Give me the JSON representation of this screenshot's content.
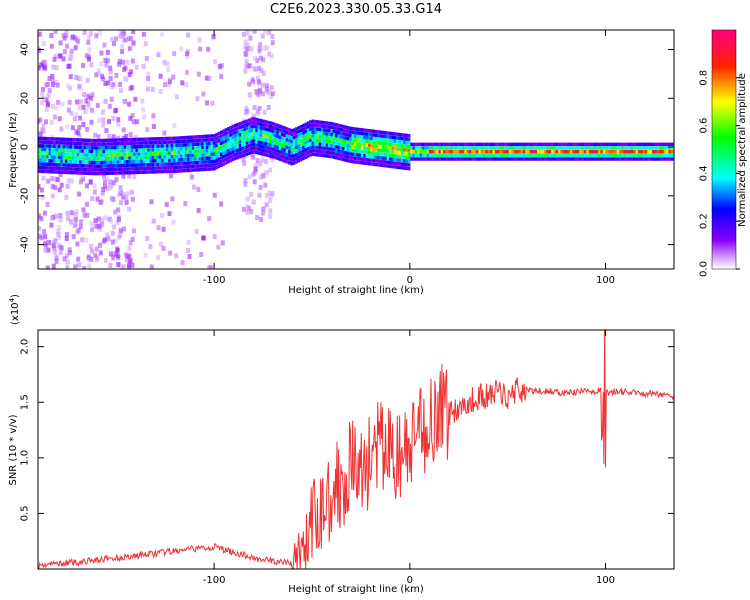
{
  "title": "C2E6.2023.330.05.33.G14",
  "chart_data": [
    {
      "type": "heatmap",
      "xlabel": "Height of straight line (km)",
      "ylabel": "Frequency (Hz)",
      "xlim": [
        -190,
        135
      ],
      "ylim": [
        -50,
        48
      ],
      "xticks": [
        -100,
        0,
        100
      ],
      "yticks": [
        -40,
        -20,
        0,
        20,
        40
      ],
      "colorbar": {
        "label": "Normalized spectral amplitude",
        "range": [
          0,
          1
        ],
        "ticks": [
          0.0,
          0.2,
          0.4,
          0.6,
          0.8
        ]
      },
      "ridge": {
        "description_points_x": [
          -190,
          -160,
          -120,
          -100,
          -90,
          -80,
          -70,
          -60,
          -50,
          -40,
          -30,
          -20,
          -10,
          0,
          20,
          60,
          100,
          135
        ],
        "description_points_y": [
          -3,
          -4,
          -3,
          -2,
          2,
          5,
          3,
          0,
          4,
          3,
          1,
          0,
          -1,
          -2,
          -2,
          -2,
          -2,
          -2
        ]
      }
    },
    {
      "type": "line",
      "xlabel": "Height of straight line (km)",
      "ylabel": "SNR (10 * v/v)",
      "y_multiplier": "(x10",
      "y_multiplier_exp": "4",
      "y_multiplier_close": ")",
      "xlim": [
        -190,
        135
      ],
      "ylim": [
        0,
        2.15
      ],
      "xticks": [
        -100,
        0,
        100
      ],
      "yticks": [
        0.5,
        1.0,
        1.5,
        2.0
      ],
      "color": "#ee3333",
      "series": [
        {
          "x": [
            -190,
            -180,
            -170,
            -160,
            -150,
            -140,
            -130,
            -120,
            -110,
            -100,
            -90,
            -80,
            -70,
            -60,
            -55,
            -50,
            -45,
            -40,
            -35,
            -30,
            -25,
            -20,
            -15,
            -10,
            -5,
            0,
            5,
            10,
            15,
            20,
            25,
            30,
            35,
            40,
            45,
            50,
            55,
            60,
            70,
            80,
            90,
            95,
            98,
            100,
            105,
            110,
            120,
            135
          ],
          "y": [
            0.03,
            0.05,
            0.06,
            0.08,
            0.1,
            0.12,
            0.14,
            0.16,
            0.18,
            0.2,
            0.15,
            0.1,
            0.07,
            0.05,
            0.15,
            0.35,
            0.55,
            0.7,
            0.8,
            0.95,
            0.85,
            1.0,
            1.1,
            1.05,
            1.0,
            1.05,
            1.2,
            1.35,
            1.45,
            1.4,
            1.45,
            1.5,
            1.55,
            1.55,
            1.6,
            1.55,
            1.62,
            1.6,
            1.6,
            1.58,
            1.6,
            1.6,
            1.6,
            1.58,
            1.6,
            1.59,
            1.58,
            1.56
          ]
        }
      ]
    }
  ]
}
